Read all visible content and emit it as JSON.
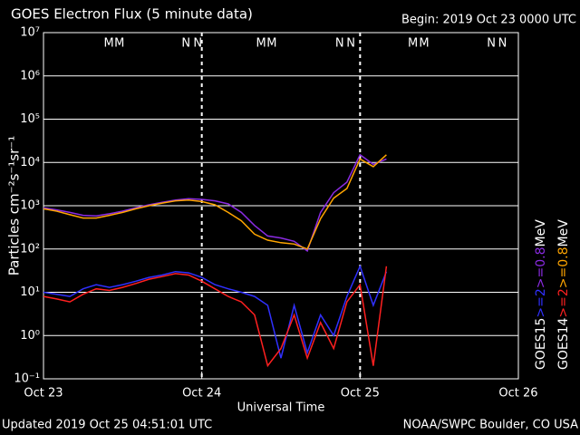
{
  "chart_data": {
    "type": "line",
    "title": "GOES Electron Flux (5 minute data)",
    "subtitle": "Begin: 2019 Oct 23 0000 UTC",
    "y_label": "Particles cm⁻²s⁻¹sr⁻¹",
    "x_label": "Universal Time",
    "footer_left": "Updated 2019 Oct 25 04:51:01 UTC",
    "footer_right": "NOAA/SWPC Boulder, CO USA",
    "log_y": true,
    "grid": true,
    "background": "#000000",
    "threshold": 1000,
    "xlim": [
      0,
      72
    ],
    "xticks": [
      {
        "value": 0,
        "label": "Oct 23"
      },
      {
        "value": 24,
        "label": "Oct 24"
      },
      {
        "value": 48,
        "label": "Oct 25"
      },
      {
        "value": 72,
        "label": "Oct 26"
      }
    ],
    "ylim": [
      0.1,
      10000000
    ],
    "yticks": [
      {
        "value": 0.1,
        "label": "10⁻¹"
      },
      {
        "value": 1,
        "label": "10⁰"
      },
      {
        "value": 10,
        "label": "10¹"
      },
      {
        "value": 100,
        "label": "10²"
      },
      {
        "value": 1000,
        "label": "10³"
      },
      {
        "value": 10000,
        "label": "10⁴"
      },
      {
        "value": 100000,
        "label": "10⁵"
      },
      {
        "value": 1000000,
        "label": "10⁶"
      },
      {
        "value": 10000000,
        "label": "10⁷"
      }
    ],
    "x": [
      0,
      2,
      4,
      6,
      8,
      10,
      12,
      14,
      16,
      18,
      20,
      22,
      24,
      26,
      28,
      30,
      32,
      34,
      36,
      38,
      40,
      42,
      44,
      46,
      48,
      50,
      52
    ],
    "series": [
      {
        "name": ">=0.8",
        "satellite": "GOES15",
        "color": "#8a2be2",
        "values": [
          900,
          800,
          700,
          600,
          580,
          650,
          750,
          900,
          1050,
          1200,
          1350,
          1450,
          1400,
          1300,
          1100,
          700,
          350,
          200,
          180,
          150,
          90,
          700,
          2000,
          3500,
          15000,
          9000,
          12000
        ]
      },
      {
        "name": ">=0.8",
        "satellite": "GOES14",
        "color": "#ffa500",
        "values": [
          850,
          750,
          620,
          520,
          520,
          600,
          700,
          850,
          1000,
          1150,
          1300,
          1350,
          1250,
          1050,
          700,
          450,
          220,
          160,
          140,
          130,
          100,
          500,
          1500,
          2500,
          12000,
          8000,
          15000
        ]
      },
      {
        "name": ">=2",
        "satellite": "GOES15",
        "color": "#3030ff",
        "values": [
          10,
          9,
          8,
          12,
          15,
          13,
          15,
          18,
          22,
          25,
          30,
          28,
          22,
          15,
          12,
          10,
          8,
          5,
          0.3,
          5,
          0.4,
          3,
          1,
          8,
          40,
          5,
          30
        ]
      },
      {
        "name": ">=2",
        "satellite": "GOES14",
        "color": "#ff2020",
        "values": [
          8,
          7,
          6,
          9,
          12,
          11,
          13,
          16,
          20,
          23,
          27,
          25,
          18,
          12,
          8,
          6,
          3,
          0.2,
          0.5,
          3,
          0.3,
          2,
          0.5,
          6,
          15,
          0.2,
          40
        ]
      }
    ],
    "legend_unit": "MeV",
    "day_markers": [
      {
        "label": "M",
        "color": "#ff2020",
        "x": 9.9
      },
      {
        "label": "M",
        "color": "#3030ff",
        "x": 11.5
      },
      {
        "label": "N",
        "color": "#ff2020",
        "x": 21.6
      },
      {
        "label": "N",
        "color": "#3030ff",
        "x": 23.4
      },
      {
        "label": "M",
        "color": "#ff2020",
        "x": 33
      },
      {
        "label": "M",
        "color": "#3030ff",
        "x": 34.6
      },
      {
        "label": "N",
        "color": "#ff2020",
        "x": 44.9
      },
      {
        "label": "N",
        "color": "#3030ff",
        "x": 46.6
      },
      {
        "label": "M",
        "color": "#ff2020",
        "x": 56
      },
      {
        "label": "M",
        "color": "#3030ff",
        "x": 57.7
      },
      {
        "label": "N",
        "color": "#ff2020",
        "x": 67.9
      },
      {
        "label": "N",
        "color": "#3030ff",
        "x": 69.6
      }
    ]
  }
}
